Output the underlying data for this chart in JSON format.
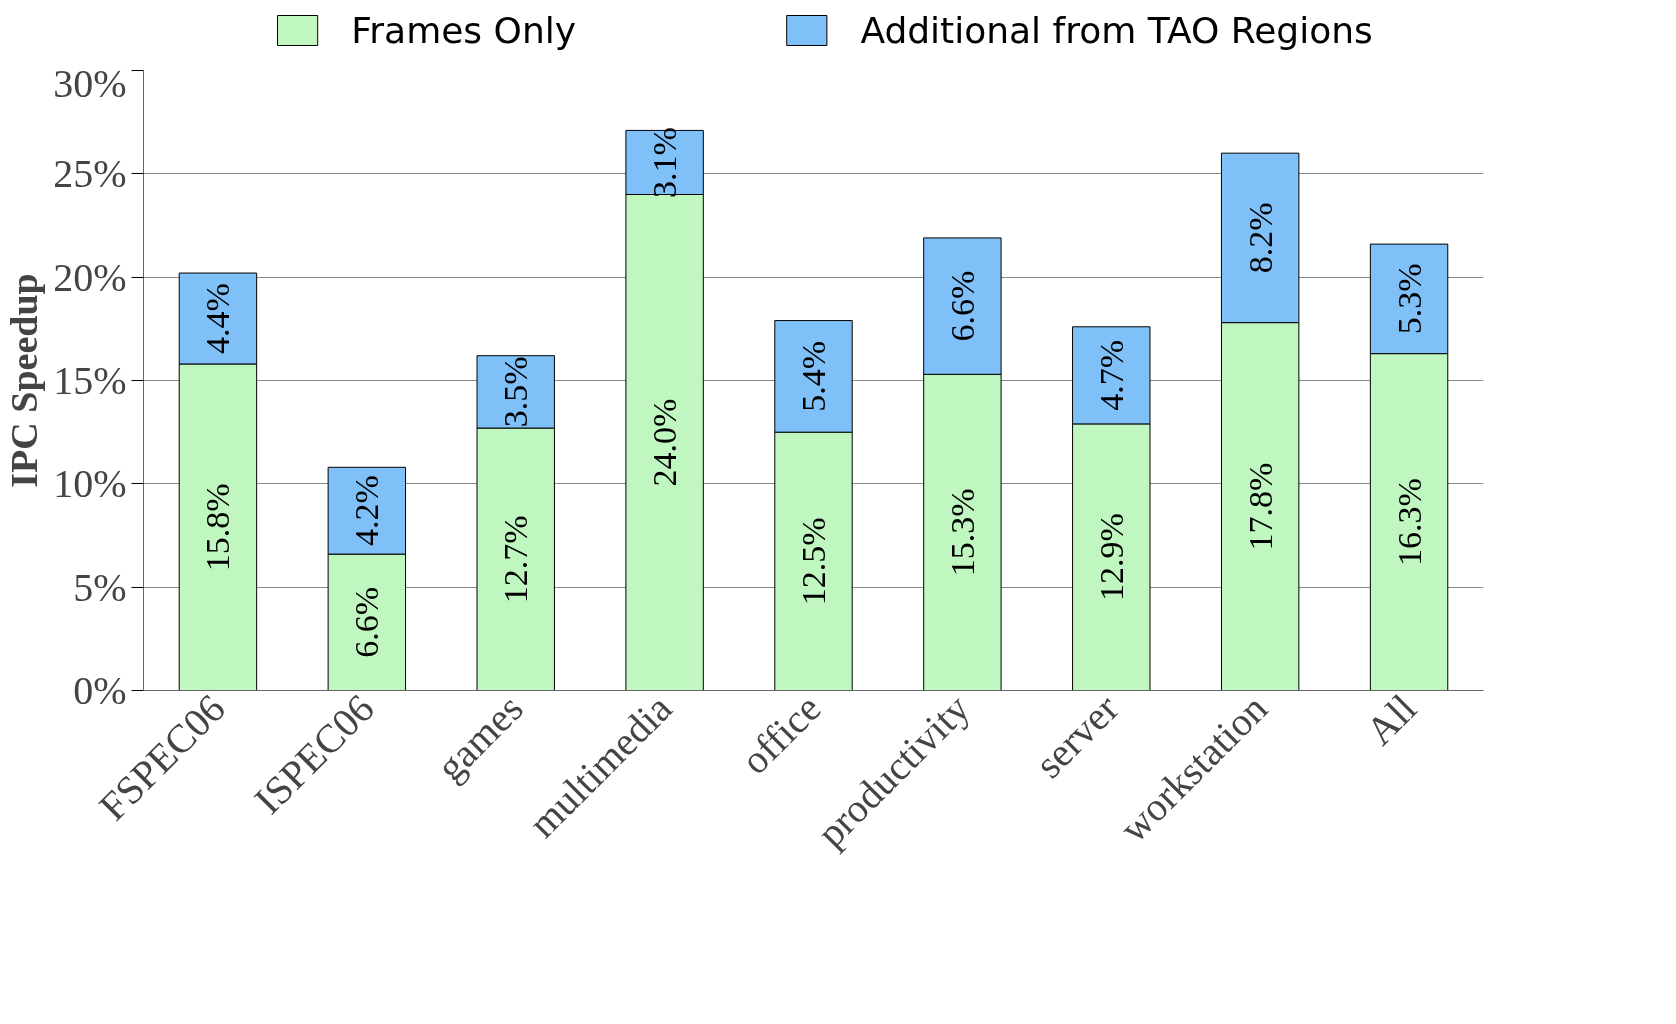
{
  "chart_data": {
    "type": "bar",
    "stacked": true,
    "ylabel": "IPC Speedup",
    "categories": [
      "FSPEC06",
      "ISPEC06",
      "games",
      "multimedia",
      "office",
      "productivity",
      "server",
      "workstation",
      "All"
    ],
    "series": [
      {
        "name": "Frames Only",
        "color": "#c0f7c0",
        "values": [
          15.8,
          6.6,
          12.7,
          24.0,
          12.5,
          15.3,
          12.9,
          17.8,
          16.3
        ],
        "value_labels": [
          "15.8%",
          "6.6%",
          "12.7%",
          "24.0%",
          "12.5%",
          "15.3%",
          "12.9%",
          "17.8%",
          "16.3%"
        ]
      },
      {
        "name": "Additional from TAO Regions",
        "color": "#80c0f8",
        "values": [
          4.4,
          4.2,
          3.5,
          3.1,
          5.4,
          6.6,
          4.7,
          8.2,
          5.3
        ],
        "value_labels": [
          "4.4%",
          "4.2%",
          "3.5%",
          "3.1%",
          "5.4%",
          "6.6%",
          "4.7%",
          "8.2%",
          "5.3%"
        ]
      }
    ],
    "ylim": [
      0,
      30
    ],
    "yticks": [
      {
        "value": 0,
        "label": "0%"
      },
      {
        "value": 5,
        "label": "5%"
      },
      {
        "value": 10,
        "label": "10%"
      },
      {
        "value": 15,
        "label": "15%"
      },
      {
        "value": 20,
        "label": "20%"
      },
      {
        "value": 25,
        "label": "25%"
      },
      {
        "value": 30,
        "label": "30%"
      }
    ],
    "grid": "y",
    "legend": "top"
  }
}
